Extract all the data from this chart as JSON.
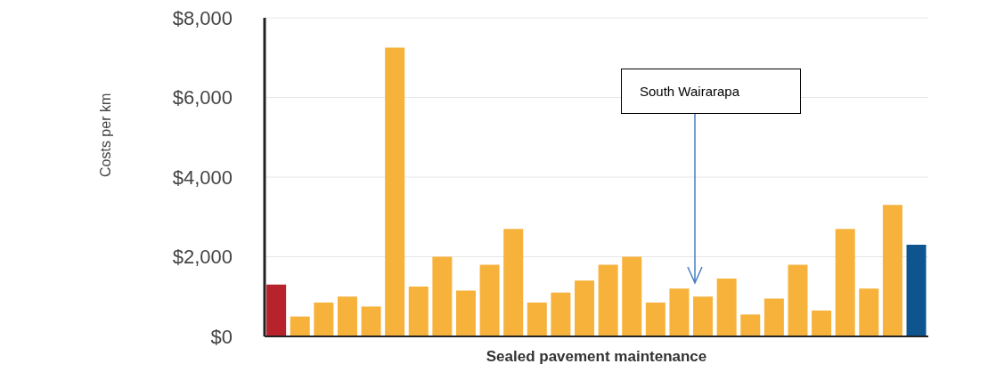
{
  "chart_data": {
    "type": "bar",
    "ylabel": "Costs per km",
    "xlabel": "Sealed pavement maintenance",
    "categories": [
      null,
      null,
      null,
      null,
      null,
      null,
      null,
      null,
      null,
      null,
      null,
      null,
      null,
      null,
      null,
      null,
      null,
      null,
      null,
      null,
      null,
      null,
      null,
      null,
      null,
      null,
      null,
      null
    ],
    "values": [
      1300,
      500,
      850,
      1000,
      750,
      7250,
      1250,
      2000,
      1150,
      1800,
      2700,
      850,
      1100,
      1400,
      1800,
      2000,
      850,
      1200,
      1000,
      1450,
      550,
      950,
      1800,
      650,
      2700,
      1200,
      3300,
      2300
    ],
    "colors": [
      "#b8222a",
      "#f7b23b",
      "#f7b23b",
      "#f7b23b",
      "#f7b23b",
      "#f7b23b",
      "#f7b23b",
      "#f7b23b",
      "#f7b23b",
      "#f7b23b",
      "#f7b23b",
      "#f7b23b",
      "#f7b23b",
      "#f7b23b",
      "#f7b23b",
      "#f7b23b",
      "#f7b23b",
      "#f7b23b",
      "#f7b23b",
      "#f7b23b",
      "#f7b23b",
      "#f7b23b",
      "#f7b23b",
      "#f7b23b",
      "#f7b23b",
      "#f7b23b",
      "#f7b23b",
      "#0e5590"
    ],
    "ylim": [
      0,
      8000
    ],
    "yticks": [
      {
        "value": 0,
        "label": "$0"
      },
      {
        "value": 2000,
        "label": "$2,000"
      },
      {
        "value": 4000,
        "label": "$4,000"
      },
      {
        "value": 6000,
        "label": "$6,000"
      },
      {
        "value": 8000,
        "label": "$8,000"
      }
    ],
    "grid": "y",
    "annotations": [
      "South Wairarapa"
    ]
  }
}
